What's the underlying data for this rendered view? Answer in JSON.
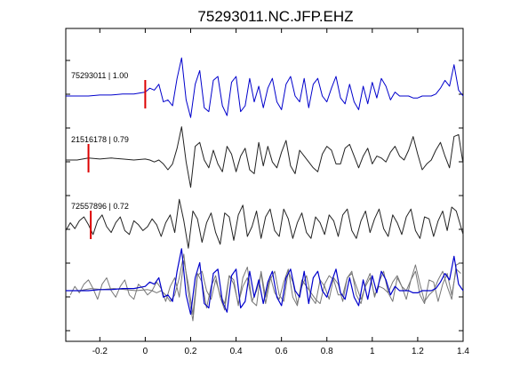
{
  "chart_data": {
    "type": "line",
    "title": "75293011.NC.JFP.EHZ",
    "xlabel": "",
    "ylabel": "",
    "xlim": [
      -0.35,
      1.4
    ],
    "xticks": [
      -0.2,
      0,
      0.2,
      0.4,
      0.6,
      0.8,
      1,
      1.2,
      1.4
    ],
    "xtick_labels": [
      "-0.2",
      "0",
      "0.2",
      "0.4",
      "0.6",
      "0.8",
      "1",
      "1.2",
      "1.4"
    ],
    "grid": false,
    "colors": {
      "primary": "#0000cc",
      "secondary": "#222222",
      "overlay": "#777777",
      "pick": "#dd0000"
    },
    "traces": [
      {
        "label": "75293011 | 1.00",
        "pick_time": 0.0,
        "color": "#0000cc",
        "x": [
          -0.35,
          -0.3,
          -0.25,
          -0.2,
          -0.15,
          -0.1,
          -0.05,
          0.0,
          0.02,
          0.04,
          0.06,
          0.08,
          0.1,
          0.12,
          0.14,
          0.16,
          0.18,
          0.2,
          0.22,
          0.24,
          0.26,
          0.28,
          0.3,
          0.32,
          0.34,
          0.36,
          0.38,
          0.4,
          0.42,
          0.44,
          0.46,
          0.48,
          0.5,
          0.52,
          0.54,
          0.56,
          0.58,
          0.6,
          0.62,
          0.64,
          0.66,
          0.68,
          0.7,
          0.72,
          0.74,
          0.76,
          0.78,
          0.8,
          0.82,
          0.84,
          0.86,
          0.88,
          0.9,
          0.92,
          0.94,
          0.96,
          0.98,
          1.0,
          1.02,
          1.04,
          1.06,
          1.08,
          1.1,
          1.12,
          1.14,
          1.16,
          1.18,
          1.2,
          1.22,
          1.24,
          1.26,
          1.28,
          1.3,
          1.32,
          1.34,
          1.36,
          1.38,
          1.4
        ],
        "y": [
          0.0,
          0.0,
          0.0,
          0.05,
          0.05,
          0.1,
          0.1,
          0.2,
          0.4,
          0.3,
          0.6,
          -0.3,
          -0.2,
          -0.5,
          0.9,
          1.95,
          -0.2,
          -1.1,
          0.6,
          1.3,
          -0.6,
          -0.8,
          0.8,
          1.0,
          -0.5,
          -1.0,
          0.7,
          1.0,
          -0.8,
          -0.5,
          0.9,
          -0.3,
          0.5,
          -0.6,
          0.4,
          0.9,
          -0.3,
          -0.7,
          0.6,
          1.0,
          0.0,
          -0.3,
          0.9,
          -0.6,
          0.6,
          0.9,
          0.0,
          -0.3,
          0.4,
          1.0,
          -0.1,
          -0.4,
          0.6,
          -0.3,
          -0.7,
          0.5,
          -0.4,
          0.7,
          -0.1,
          0.9,
          0.5,
          -0.2,
          0.2,
          0.0,
          0.0,
          0.0,
          -0.1,
          -0.1,
          0.0,
          0.0,
          0.0,
          0.1,
          0.4,
          0.8,
          0.5,
          1.6,
          0.3,
          0.0
        ]
      },
      {
        "label": "21516178 | 0.79",
        "pick_time": -0.25,
        "color": "#222222",
        "x": [
          -0.35,
          -0.3,
          -0.25,
          -0.2,
          -0.15,
          -0.1,
          -0.05,
          0.0,
          0.02,
          0.04,
          0.06,
          0.08,
          0.1,
          0.12,
          0.14,
          0.16,
          0.18,
          0.2,
          0.22,
          0.24,
          0.26,
          0.28,
          0.3,
          0.32,
          0.34,
          0.36,
          0.38,
          0.4,
          0.42,
          0.44,
          0.46,
          0.48,
          0.5,
          0.52,
          0.54,
          0.56,
          0.58,
          0.6,
          0.62,
          0.64,
          0.66,
          0.68,
          0.7,
          0.72,
          0.74,
          0.76,
          0.78,
          0.8,
          0.82,
          0.84,
          0.86,
          0.88,
          0.9,
          0.92,
          0.94,
          0.96,
          0.98,
          1.0,
          1.02,
          1.04,
          1.06,
          1.08,
          1.1,
          1.12,
          1.14,
          1.16,
          1.18,
          1.2,
          1.22,
          1.24,
          1.26,
          1.28,
          1.3,
          1.32,
          1.34,
          1.36,
          1.38,
          1.4
        ],
        "y": [
          0.0,
          0.0,
          0.1,
          0.05,
          0.1,
          0.05,
          0.0,
          0.05,
          0.0,
          -0.1,
          0.0,
          -0.2,
          -0.5,
          -0.2,
          0.6,
          1.7,
          -0.1,
          -1.4,
          0.7,
          0.9,
          0.0,
          -0.4,
          0.5,
          -0.2,
          -0.6,
          0.7,
          0.3,
          -0.6,
          0.2,
          0.6,
          -0.5,
          -0.7,
          0.9,
          -0.3,
          0.7,
          -0.1,
          -0.4,
          0.4,
          1.0,
          -0.3,
          -0.7,
          0.5,
          0.2,
          -0.1,
          -0.4,
          -0.6,
          0.3,
          0.7,
          0.5,
          -0.2,
          -0.2,
          0.6,
          0.8,
          0.2,
          -0.4,
          0.2,
          0.6,
          -0.2,
          0.2,
          0.1,
          -0.1,
          0.4,
          0.7,
          0.2,
          0.0,
          0.5,
          1.2,
          0.3,
          -0.5,
          -0.2,
          0.0,
          0.5,
          0.9,
          0.2,
          -0.4,
          1.2,
          1.3,
          -0.2
        ]
      },
      {
        "label": "72557896 | 0.72",
        "pick_time": -0.24,
        "color": "#222222",
        "x": [
          -0.35,
          -0.33,
          -0.31,
          -0.29,
          -0.27,
          -0.25,
          -0.23,
          -0.21,
          -0.19,
          -0.17,
          -0.15,
          -0.13,
          -0.11,
          -0.09,
          -0.07,
          -0.05,
          -0.03,
          -0.01,
          0.01,
          0.03,
          0.05,
          0.07,
          0.09,
          0.11,
          0.13,
          0.15,
          0.17,
          0.19,
          0.21,
          0.23,
          0.25,
          0.27,
          0.29,
          0.31,
          0.33,
          0.35,
          0.37,
          0.39,
          0.41,
          0.43,
          0.45,
          0.47,
          0.49,
          0.51,
          0.53,
          0.55,
          0.57,
          0.59,
          0.61,
          0.63,
          0.65,
          0.67,
          0.69,
          0.71,
          0.73,
          0.75,
          0.77,
          0.79,
          0.81,
          0.83,
          0.85,
          0.87,
          0.89,
          0.91,
          0.93,
          0.95,
          0.97,
          0.99,
          1.01,
          1.03,
          1.05,
          1.07,
          1.09,
          1.11,
          1.13,
          1.15,
          1.17,
          1.19,
          1.21,
          1.23,
          1.25,
          1.27,
          1.29,
          1.31,
          1.33,
          1.35,
          1.37,
          1.4
        ],
        "y": [
          -0.2,
          0.2,
          -0.1,
          0.3,
          0.5,
          0.1,
          -0.4,
          0.3,
          0.6,
          0.0,
          -0.3,
          0.2,
          0.5,
          -0.2,
          -0.4,
          0.3,
          0.1,
          -0.2,
          0.0,
          0.4,
          0.1,
          -0.5,
          0.2,
          0.6,
          -0.3,
          1.4,
          0.3,
          -1.1,
          0.8,
          0.4,
          -0.8,
          0.2,
          0.7,
          -0.3,
          -0.9,
          0.7,
          0.5,
          -0.7,
          0.6,
          1.1,
          -0.5,
          0.0,
          0.8,
          -0.6,
          0.5,
          0.9,
          -0.2,
          -0.5,
          0.9,
          0.4,
          -0.6,
          0.2,
          0.7,
          -0.3,
          -0.6,
          0.5,
          0.2,
          -0.4,
          0.6,
          0.3,
          -0.5,
          0.6,
          0.9,
          -0.2,
          -0.6,
          0.3,
          0.8,
          -0.3,
          0.4,
          0.9,
          -0.1,
          -0.5,
          0.6,
          0.2,
          -0.4,
          0.5,
          0.9,
          -0.2,
          -0.6,
          0.5,
          0.4,
          -0.5,
          0.3,
          0.8,
          -0.2,
          1.0,
          0.8,
          -0.4
        ]
      }
    ]
  }
}
